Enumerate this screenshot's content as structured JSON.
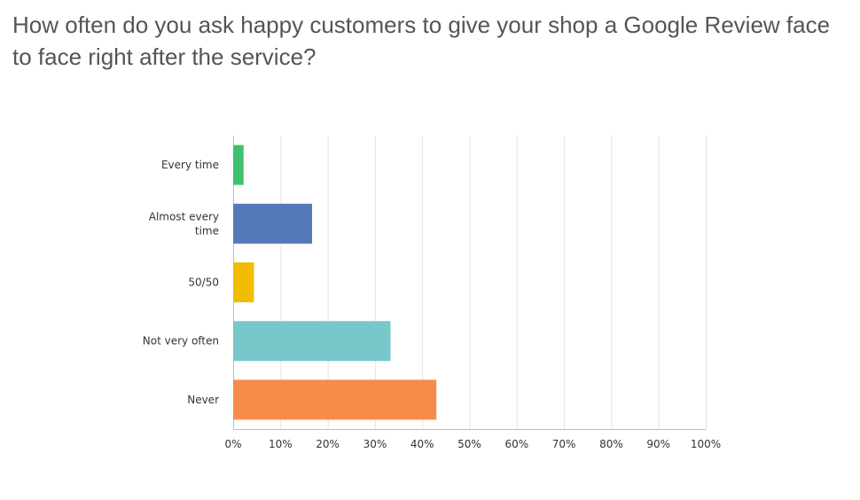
{
  "question": {
    "title": "How often do you ask happy customers to give your shop a Google Review face to face right after the service?"
  },
  "chart_data": {
    "type": "bar",
    "orientation": "horizontal",
    "categories": [
      "Every time",
      "Almost every time",
      "50/50",
      "Not very often",
      "Never"
    ],
    "category_lines": [
      [
        "Every time"
      ],
      [
        "Almost every",
        "time"
      ],
      [
        "50/50"
      ],
      [
        "Not very often"
      ],
      [
        "Never"
      ]
    ],
    "values": [
      2.2,
      16.7,
      4.4,
      33.3,
      43.0
    ],
    "colors": [
      "#3fc16e",
      "#5579b8",
      "#f2bd00",
      "#78c8cb",
      "#f78b4a"
    ],
    "xlim": [
      0,
      100
    ],
    "ticks": [
      0,
      10,
      20,
      30,
      40,
      50,
      60,
      70,
      80,
      90,
      100
    ],
    "tick_labels": [
      "0%",
      "10%",
      "20%",
      "30%",
      "40%",
      "50%",
      "60%",
      "70%",
      "80%",
      "90%",
      "100%"
    ],
    "grid": true
  }
}
